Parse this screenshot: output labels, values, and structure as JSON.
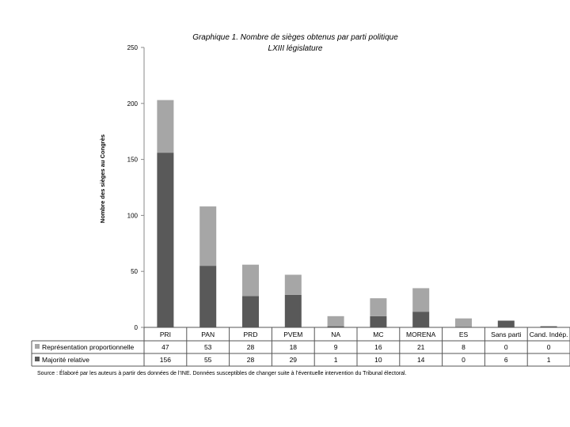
{
  "chart_data": {
    "type": "bar",
    "stacked": true,
    "title": "Graphique 1. Nombre de sièges obtenus par parti politique",
    "subtitle": "LXIII législature",
    "ylabel": "Nombre des sièges au Congrès",
    "xlabel": "",
    "ylim": [
      0,
      250
    ],
    "yticks": [
      "0",
      "50",
      "100",
      "150",
      "200",
      "250"
    ],
    "categories": [
      "PRI",
      "PAN",
      "PRD",
      "PVEM",
      "NA",
      "MC",
      "MORENA",
      "ES",
      "Sans parti",
      "Cand. Indép."
    ],
    "series": [
      {
        "name": "Majorité relative",
        "values": [
          156,
          55,
          28,
          29,
          1,
          10,
          14,
          0,
          6,
          1
        ],
        "color": "#595959"
      },
      {
        "name": "Représentation proportionnelle",
        "values": [
          47,
          53,
          28,
          18,
          9,
          16,
          21,
          8,
          0,
          0
        ],
        "color": "#a6a6a6"
      }
    ],
    "table_rows": [
      {
        "label": "Représentation proportionnelle",
        "values": [
          "47",
          "53",
          "28",
          "18",
          "9",
          "16",
          "21",
          "8",
          "0",
          "0"
        ]
      },
      {
        "label": "Majorité relative",
        "values": [
          "156",
          "55",
          "28",
          "29",
          "1",
          "10",
          "14",
          "0",
          "6",
          "1"
        ]
      }
    ],
    "grid": false,
    "legend": "table"
  },
  "source": "Source : Élaboré par les auteurs à partir des données de l’INE. Données susceptibles de changer suite à l’éventuelle intervention du Tribunal électoral."
}
